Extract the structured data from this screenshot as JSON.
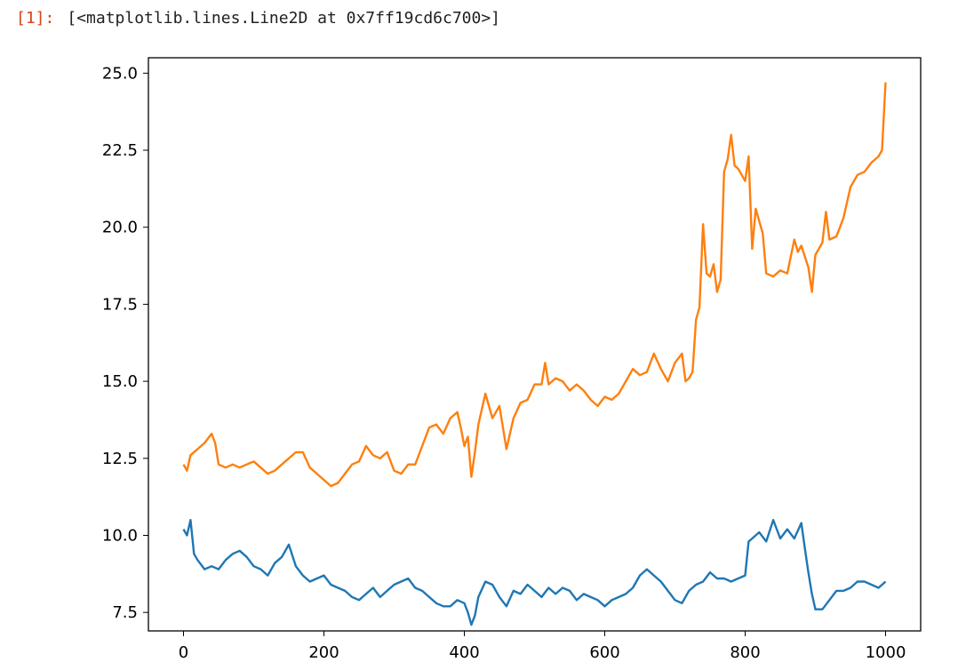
{
  "output": {
    "prompt": "[1]:",
    "repr": "[<matplotlib.lines.Line2D at 0x7ff19cd6c700>]"
  },
  "chart_data": {
    "type": "line",
    "title": "",
    "xlabel": "",
    "ylabel": "",
    "xlim": [
      -50,
      1050
    ],
    "ylim": [
      6.9,
      25.5
    ],
    "xticks": [
      0,
      200,
      400,
      600,
      800,
      1000
    ],
    "yticks": [
      7.5,
      10.0,
      12.5,
      15.0,
      17.5,
      20.0,
      22.5,
      25.0
    ],
    "xtick_labels": [
      "0",
      "200",
      "400",
      "600",
      "800",
      "1000"
    ],
    "ytick_labels": [
      "7.5",
      "10.0",
      "12.5",
      "15.0",
      "17.5",
      "20.0",
      "22.5",
      "25.0"
    ],
    "grid": false,
    "series": [
      {
        "color": "#1f77b4",
        "points": [
          [
            0,
            10.2
          ],
          [
            5,
            10.0
          ],
          [
            10,
            10.5
          ],
          [
            15,
            9.4
          ],
          [
            20,
            9.2
          ],
          [
            30,
            8.9
          ],
          [
            40,
            9.0
          ],
          [
            50,
            8.9
          ],
          [
            60,
            9.2
          ],
          [
            70,
            9.4
          ],
          [
            80,
            9.5
          ],
          [
            90,
            9.3
          ],
          [
            100,
            9.0
          ],
          [
            110,
            8.9
          ],
          [
            120,
            8.7
          ],
          [
            130,
            9.1
          ],
          [
            140,
            9.3
          ],
          [
            150,
            9.7
          ],
          [
            160,
            9.0
          ],
          [
            170,
            8.7
          ],
          [
            180,
            8.5
          ],
          [
            190,
            8.6
          ],
          [
            200,
            8.7
          ],
          [
            210,
            8.4
          ],
          [
            220,
            8.3
          ],
          [
            230,
            8.2
          ],
          [
            240,
            8.0
          ],
          [
            250,
            7.9
          ],
          [
            260,
            8.1
          ],
          [
            270,
            8.3
          ],
          [
            280,
            8.0
          ],
          [
            290,
            8.2
          ],
          [
            300,
            8.4
          ],
          [
            310,
            8.5
          ],
          [
            320,
            8.6
          ],
          [
            330,
            8.3
          ],
          [
            340,
            8.2
          ],
          [
            350,
            8.0
          ],
          [
            360,
            7.8
          ],
          [
            370,
            7.7
          ],
          [
            380,
            7.7
          ],
          [
            390,
            7.9
          ],
          [
            400,
            7.8
          ],
          [
            405,
            7.5
          ],
          [
            410,
            7.1
          ],
          [
            415,
            7.4
          ],
          [
            420,
            8.0
          ],
          [
            430,
            8.5
          ],
          [
            440,
            8.4
          ],
          [
            450,
            8.0
          ],
          [
            460,
            7.7
          ],
          [
            470,
            8.2
          ],
          [
            480,
            8.1
          ],
          [
            490,
            8.4
          ],
          [
            500,
            8.2
          ],
          [
            510,
            8.0
          ],
          [
            520,
            8.3
          ],
          [
            530,
            8.1
          ],
          [
            540,
            8.3
          ],
          [
            550,
            8.2
          ],
          [
            560,
            7.9
          ],
          [
            570,
            8.1
          ],
          [
            580,
            8.0
          ],
          [
            590,
            7.9
          ],
          [
            600,
            7.7
          ],
          [
            610,
            7.9
          ],
          [
            620,
            8.0
          ],
          [
            630,
            8.1
          ],
          [
            640,
            8.3
          ],
          [
            650,
            8.7
          ],
          [
            660,
            8.9
          ],
          [
            670,
            8.7
          ],
          [
            680,
            8.5
          ],
          [
            690,
            8.2
          ],
          [
            700,
            7.9
          ],
          [
            710,
            7.8
          ],
          [
            720,
            8.2
          ],
          [
            730,
            8.4
          ],
          [
            740,
            8.5
          ],
          [
            750,
            8.8
          ],
          [
            760,
            8.6
          ],
          [
            770,
            8.6
          ],
          [
            780,
            8.5
          ],
          [
            790,
            8.6
          ],
          [
            800,
            8.7
          ],
          [
            805,
            9.8
          ],
          [
            810,
            9.9
          ],
          [
            820,
            10.1
          ],
          [
            830,
            9.8
          ],
          [
            840,
            10.5
          ],
          [
            850,
            9.9
          ],
          [
            860,
            10.2
          ],
          [
            870,
            9.9
          ],
          [
            880,
            10.4
          ],
          [
            885,
            9.6
          ],
          [
            890,
            8.8
          ],
          [
            895,
            8.1
          ],
          [
            900,
            7.6
          ],
          [
            910,
            7.6
          ],
          [
            920,
            7.9
          ],
          [
            930,
            8.2
          ],
          [
            940,
            8.2
          ],
          [
            950,
            8.3
          ],
          [
            960,
            8.5
          ],
          [
            970,
            8.5
          ],
          [
            980,
            8.4
          ],
          [
            990,
            8.3
          ],
          [
            1000,
            8.5
          ]
        ]
      },
      {
        "color": "#ff7f0e",
        "points": [
          [
            0,
            12.3
          ],
          [
            5,
            12.1
          ],
          [
            10,
            12.6
          ],
          [
            20,
            12.8
          ],
          [
            30,
            13.0
          ],
          [
            40,
            13.3
          ],
          [
            45,
            13.0
          ],
          [
            50,
            12.3
          ],
          [
            60,
            12.2
          ],
          [
            70,
            12.3
          ],
          [
            80,
            12.2
          ],
          [
            90,
            12.3
          ],
          [
            100,
            12.4
          ],
          [
            110,
            12.2
          ],
          [
            120,
            12.0
          ],
          [
            130,
            12.1
          ],
          [
            140,
            12.3
          ],
          [
            150,
            12.5
          ],
          [
            160,
            12.7
          ],
          [
            170,
            12.7
          ],
          [
            180,
            12.2
          ],
          [
            190,
            12.0
          ],
          [
            200,
            11.8
          ],
          [
            210,
            11.6
          ],
          [
            220,
            11.7
          ],
          [
            230,
            12.0
          ],
          [
            240,
            12.3
          ],
          [
            250,
            12.4
          ],
          [
            260,
            12.9
          ],
          [
            270,
            12.6
          ],
          [
            280,
            12.5
          ],
          [
            290,
            12.7
          ],
          [
            300,
            12.1
          ],
          [
            310,
            12.0
          ],
          [
            320,
            12.3
          ],
          [
            330,
            12.3
          ],
          [
            340,
            12.9
          ],
          [
            350,
            13.5
          ],
          [
            360,
            13.6
          ],
          [
            370,
            13.3
          ],
          [
            380,
            13.8
          ],
          [
            390,
            14.0
          ],
          [
            395,
            13.5
          ],
          [
            400,
            12.9
          ],
          [
            405,
            13.2
          ],
          [
            410,
            11.9
          ],
          [
            415,
            12.7
          ],
          [
            420,
            13.6
          ],
          [
            430,
            14.6
          ],
          [
            440,
            13.8
          ],
          [
            450,
            14.2
          ],
          [
            460,
            12.8
          ],
          [
            470,
            13.8
          ],
          [
            480,
            14.3
          ],
          [
            490,
            14.4
          ],
          [
            500,
            14.9
          ],
          [
            510,
            14.9
          ],
          [
            515,
            15.6
          ],
          [
            520,
            14.9
          ],
          [
            530,
            15.1
          ],
          [
            540,
            15.0
          ],
          [
            550,
            14.7
          ],
          [
            560,
            14.9
          ],
          [
            570,
            14.7
          ],
          [
            580,
            14.4
          ],
          [
            590,
            14.2
          ],
          [
            600,
            14.5
          ],
          [
            610,
            14.4
          ],
          [
            620,
            14.6
          ],
          [
            630,
            15.0
          ],
          [
            640,
            15.4
          ],
          [
            650,
            15.2
          ],
          [
            660,
            15.3
          ],
          [
            670,
            15.9
          ],
          [
            680,
            15.4
          ],
          [
            690,
            15.0
          ],
          [
            700,
            15.6
          ],
          [
            710,
            15.9
          ],
          [
            715,
            15.0
          ],
          [
            720,
            15.1
          ],
          [
            725,
            15.3
          ],
          [
            730,
            17.0
          ],
          [
            735,
            17.4
          ],
          [
            740,
            20.1
          ],
          [
            745,
            18.5
          ],
          [
            750,
            18.4
          ],
          [
            755,
            18.8
          ],
          [
            760,
            17.9
          ],
          [
            765,
            18.3
          ],
          [
            770,
            21.8
          ],
          [
            775,
            22.2
          ],
          [
            780,
            23.0
          ],
          [
            785,
            22.0
          ],
          [
            790,
            21.9
          ],
          [
            800,
            21.5
          ],
          [
            805,
            22.3
          ],
          [
            810,
            19.3
          ],
          [
            815,
            20.6
          ],
          [
            820,
            20.2
          ],
          [
            825,
            19.8
          ],
          [
            830,
            18.5
          ],
          [
            840,
            18.4
          ],
          [
            850,
            18.6
          ],
          [
            860,
            18.5
          ],
          [
            870,
            19.6
          ],
          [
            875,
            19.2
          ],
          [
            880,
            19.4
          ],
          [
            890,
            18.7
          ],
          [
            895,
            17.9
          ],
          [
            900,
            19.1
          ],
          [
            910,
            19.5
          ],
          [
            915,
            20.5
          ],
          [
            920,
            19.6
          ],
          [
            930,
            19.7
          ],
          [
            940,
            20.3
          ],
          [
            950,
            21.3
          ],
          [
            960,
            21.7
          ],
          [
            970,
            21.8
          ],
          [
            980,
            22.1
          ],
          [
            990,
            22.3
          ],
          [
            995,
            22.5
          ],
          [
            1000,
            24.7
          ]
        ]
      }
    ]
  }
}
